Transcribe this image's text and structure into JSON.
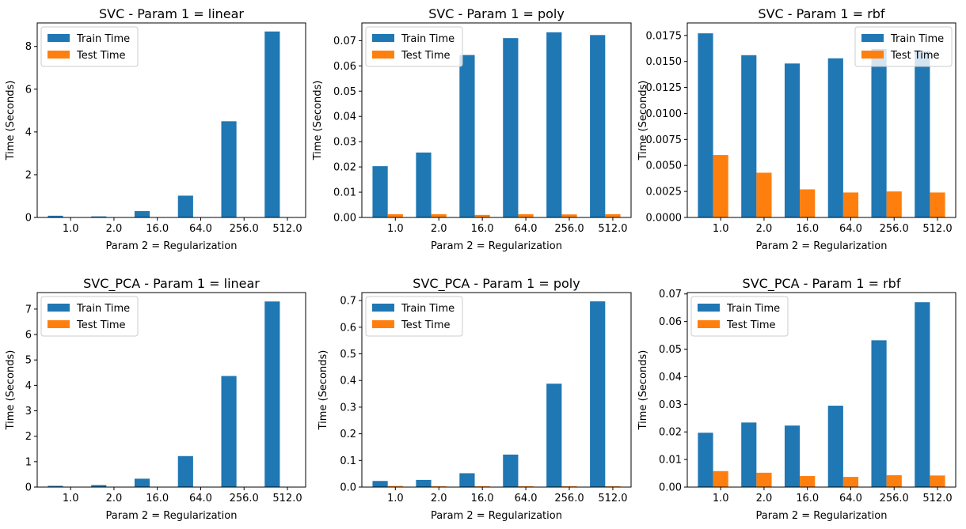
{
  "colors": {
    "train": "#1f77b4",
    "test": "#ff7f0e",
    "axis": "#000000"
  },
  "chart_data": [
    {
      "type": "bar",
      "title": "SVC - Param 1 = linear",
      "xlabel": "Param 2 = Regularization",
      "ylabel": "Time (Seconds)",
      "categories": [
        "1.0",
        "2.0",
        "16.0",
        "64.0",
        "256.0",
        "512.0"
      ],
      "ylim": [
        0,
        9.1
      ],
      "yticks": [
        0,
        2,
        4,
        6,
        8
      ],
      "ytick_labels": [
        "0",
        "2",
        "4",
        "6",
        "8"
      ],
      "legend": "top-left",
      "series": [
        {
          "name": "Train Time",
          "values": [
            0.08,
            0.05,
            0.3,
            1.02,
            4.5,
            8.7
          ]
        },
        {
          "name": "Test Time",
          "values": [
            0.003,
            0.003,
            0.003,
            0.003,
            0.003,
            0.003
          ]
        }
      ]
    },
    {
      "type": "bar",
      "title": "SVC - Param 1 = poly",
      "xlabel": "Param 2 = Regularization",
      "ylabel": "Time (Seconds)",
      "categories": [
        "1.0",
        "2.0",
        "16.0",
        "64.0",
        "256.0",
        "512.0"
      ],
      "ylim": [
        0,
        0.077
      ],
      "yticks": [
        0,
        0.01,
        0.02,
        0.03,
        0.04,
        0.05,
        0.06,
        0.07
      ],
      "ytick_labels": [
        "0.00",
        "0.01",
        "0.02",
        "0.03",
        "0.04",
        "0.05",
        "0.06",
        "0.07"
      ],
      "legend": "top-left",
      "series": [
        {
          "name": "Train Time",
          "values": [
            0.0203,
            0.0257,
            0.0643,
            0.071,
            0.0733,
            0.0722
          ]
        },
        {
          "name": "Test Time",
          "values": [
            0.0013,
            0.0013,
            0.001,
            0.0013,
            0.0012,
            0.0013
          ]
        }
      ]
    },
    {
      "type": "bar",
      "title": "SVC - Param 1 = rbf",
      "xlabel": "Param 2 = Regularization",
      "ylabel": "Time (Seconds)",
      "categories": [
        "1.0",
        "2.0",
        "16.0",
        "64.0",
        "256.0",
        "512.0"
      ],
      "ylim": [
        0,
        0.0187
      ],
      "yticks": [
        0,
        0.0025,
        0.005,
        0.0075,
        0.01,
        0.0125,
        0.015,
        0.0175
      ],
      "ytick_labels": [
        "0.0000",
        "0.0025",
        "0.0050",
        "0.0075",
        "0.0100",
        "0.0125",
        "0.0150",
        "0.0175"
      ],
      "legend": "top-right",
      "series": [
        {
          "name": "Train Time",
          "values": [
            0.0177,
            0.0156,
            0.0148,
            0.0153,
            0.0162,
            0.016
          ]
        },
        {
          "name": "Test Time",
          "values": [
            0.006,
            0.0043,
            0.0027,
            0.0024,
            0.0025,
            0.0024
          ]
        }
      ]
    },
    {
      "type": "bar",
      "title": "SVC_PCA - Param 1 = linear",
      "xlabel": "Param 2 = Regularization",
      "ylabel": "Time (Seconds)",
      "categories": [
        "1.0",
        "2.0",
        "16.0",
        "64.0",
        "256.0",
        "512.0"
      ],
      "ylim": [
        0,
        7.65
      ],
      "yticks": [
        0,
        1,
        2,
        3,
        4,
        5,
        6,
        7
      ],
      "ytick_labels": [
        "0",
        "1",
        "2",
        "3",
        "4",
        "5",
        "6",
        "7"
      ],
      "legend": "top-left",
      "series": [
        {
          "name": "Train Time",
          "values": [
            0.05,
            0.08,
            0.33,
            1.22,
            4.37,
            7.3
          ]
        },
        {
          "name": "Test Time",
          "values": [
            0.003,
            0.003,
            0.003,
            0.003,
            0.003,
            0.003
          ]
        }
      ]
    },
    {
      "type": "bar",
      "title": "SVC_PCA - Param 1 = poly",
      "xlabel": "Param 2 = Regularization",
      "ylabel": "Time (Seconds)",
      "categories": [
        "1.0",
        "2.0",
        "16.0",
        "64.0",
        "256.0",
        "512.0"
      ],
      "ylim": [
        0,
        0.73
      ],
      "yticks": [
        0,
        0.1,
        0.2,
        0.3,
        0.4,
        0.5,
        0.6,
        0.7
      ],
      "ytick_labels": [
        "0.0",
        "0.1",
        "0.2",
        "0.3",
        "0.4",
        "0.5",
        "0.6",
        "0.7"
      ],
      "legend": "top-left",
      "series": [
        {
          "name": "Train Time",
          "values": [
            0.023,
            0.027,
            0.052,
            0.122,
            0.388,
            0.697
          ]
        },
        {
          "name": "Test Time",
          "values": [
            0.004,
            0.003,
            0.003,
            0.003,
            0.003,
            0.003
          ]
        }
      ]
    },
    {
      "type": "bar",
      "title": "SVC_PCA - Param 1 = rbf",
      "xlabel": "Param 2 = Regularization",
      "ylabel": "Time (Seconds)",
      "categories": [
        "1.0",
        "2.0",
        "16.0",
        "64.0",
        "256.0",
        "512.0"
      ],
      "ylim": [
        0,
        0.0705
      ],
      "yticks": [
        0,
        0.01,
        0.02,
        0.03,
        0.04,
        0.05,
        0.06,
        0.07
      ],
      "ytick_labels": [
        "0.00",
        "0.01",
        "0.02",
        "0.03",
        "0.04",
        "0.05",
        "0.06",
        "0.07"
      ],
      "legend": "top-left",
      "series": [
        {
          "name": "Train Time",
          "values": [
            0.0197,
            0.0234,
            0.0223,
            0.0295,
            0.0532,
            0.067
          ]
        },
        {
          "name": "Test Time",
          "values": [
            0.0058,
            0.0052,
            0.004,
            0.0037,
            0.0043,
            0.0042
          ]
        }
      ]
    }
  ]
}
